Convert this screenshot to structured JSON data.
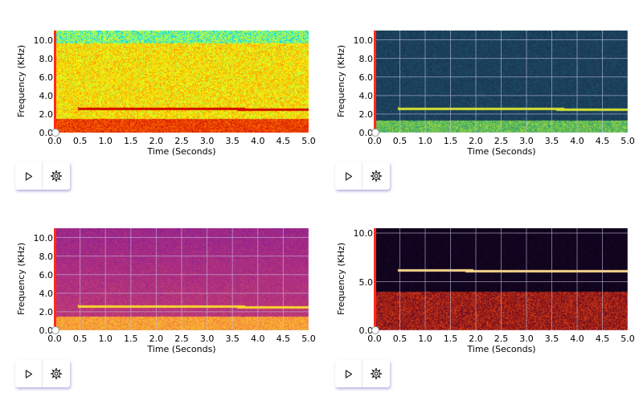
{
  "panels": [
    {
      "id": "p1",
      "colormap": "jet",
      "ylabel": "Frequency (KHz)",
      "xlabel": "Time (Seconds)",
      "yticks": [
        "0.0",
        "2.0",
        "4.0",
        "6.0",
        "8.0",
        "10.0"
      ],
      "ytick_values": [
        0,
        2,
        4,
        6,
        8,
        10
      ],
      "ymax": 11,
      "xticks": [
        "0.0",
        "0.5",
        "1.0",
        "1.5",
        "2.0",
        "2.5",
        "3.0",
        "3.5",
        "4.0",
        "4.5",
        "5.0"
      ],
      "controls": {
        "play_icon": "play-icon",
        "settings_icon": "gear-icon"
      }
    },
    {
      "id": "p2",
      "colormap": "viridis",
      "ylabel": "Frequency (KHz)",
      "xlabel": "Time (Seconds)",
      "yticks": [
        "0.0",
        "2.0",
        "4.0",
        "6.0",
        "8.0",
        "10.0"
      ],
      "ytick_values": [
        0,
        2,
        4,
        6,
        8,
        10
      ],
      "ymax": 11,
      "xticks": [
        "0.0",
        "0.5",
        "1.0",
        "1.5",
        "2.0",
        "2.5",
        "3.0",
        "3.5",
        "4.0",
        "4.5",
        "5.0"
      ],
      "controls": {
        "play_icon": "play-icon",
        "settings_icon": "gear-icon"
      }
    },
    {
      "id": "p3",
      "colormap": "plasma",
      "ylabel": "Frequency (KHz)",
      "xlabel": "Time (Seconds)",
      "yticks": [
        "0.0",
        "2.0",
        "4.0",
        "6.0",
        "8.0",
        "10.0"
      ],
      "ytick_values": [
        0,
        2,
        4,
        6,
        8,
        10
      ],
      "ymax": 11,
      "xticks": [
        "0.0",
        "0.5",
        "1.0",
        "1.5",
        "2.0",
        "2.5",
        "3.0",
        "3.5",
        "4.0",
        "4.5",
        "5.0"
      ],
      "controls": {
        "play_icon": "play-icon",
        "settings_icon": "gear-icon"
      }
    },
    {
      "id": "p4",
      "colormap": "inferno",
      "ylabel": "Frequency (KHz)",
      "xlabel": "Time (Seconds)",
      "yticks": [
        "0.0",
        "5.0",
        "10.0"
      ],
      "ytick_values": [
        0,
        5,
        10
      ],
      "ymax": 10.5,
      "xticks": [
        "0.0",
        "0.5",
        "1.0",
        "1.5",
        "2.0",
        "2.5",
        "3.0",
        "3.5",
        "4.0",
        "4.5",
        "5.0"
      ],
      "controls": {
        "play_icon": "play-icon",
        "settings_icon": "gear-icon"
      }
    }
  ],
  "colors": {
    "playhead": "#ff2a1a",
    "control_shadow": "#8878c8"
  }
}
